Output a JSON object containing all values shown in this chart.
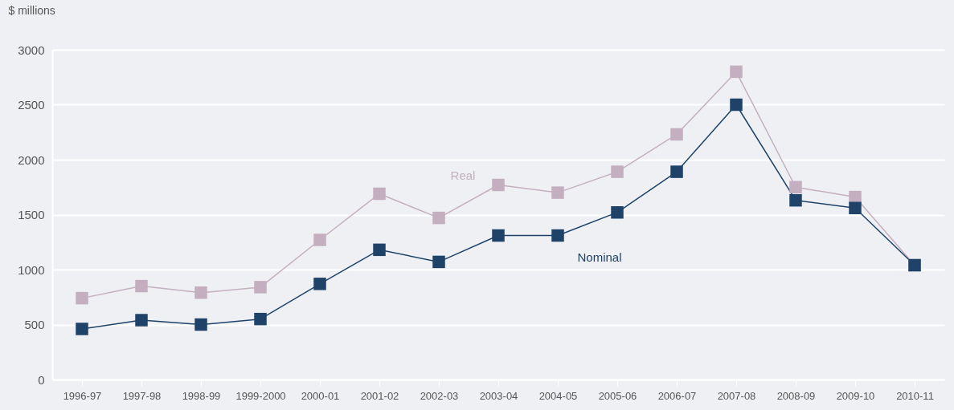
{
  "chart_data": {
    "type": "line",
    "ylabel": "$ millions",
    "categories": [
      "1996-97",
      "1997-98",
      "1998-99",
      "1999-2000",
      "2000-01",
      "2001-02",
      "2002-03",
      "2003-04",
      "2004-05",
      "2005-06",
      "2006-07",
      "2007-08",
      "2008-09",
      "2009-10",
      "2010-11"
    ],
    "series": [
      {
        "name": "Real",
        "color": "#c4afc0",
        "values": [
          740,
          850,
          790,
          840,
          1270,
          1690,
          1470,
          1770,
          1700,
          1890,
          2230,
          2800,
          1750,
          1660,
          1040
        ]
      },
      {
        "name": "Nominal",
        "color": "#1f4268",
        "values": [
          460,
          540,
          500,
          550,
          870,
          1180,
          1070,
          1310,
          1310,
          1520,
          1890,
          2500,
          1630,
          1560,
          1040
        ]
      }
    ],
    "ylim": [
      0,
      3000
    ],
    "yticks": [
      0,
      500,
      1000,
      1500,
      2000,
      2500,
      3000
    ],
    "grid": "y",
    "marker": "square",
    "line_style": "solid"
  }
}
